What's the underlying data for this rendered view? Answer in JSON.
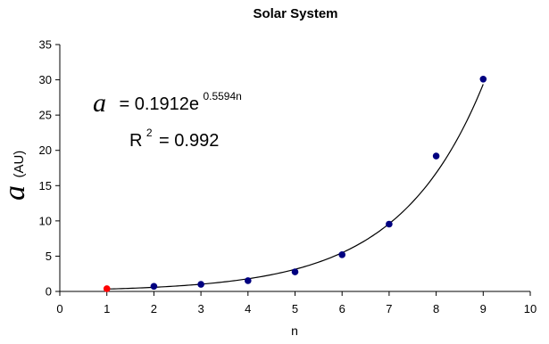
{
  "chart_data": {
    "type": "scatter",
    "title": "Solar System",
    "xlabel": "n",
    "ylabel_symbol": "a",
    "ylabel_unit": "(AU)",
    "xlim": [
      0,
      10
    ],
    "ylim": [
      0,
      35
    ],
    "x_ticks": [
      "0",
      "1",
      "2",
      "3",
      "4",
      "5",
      "6",
      "7",
      "8",
      "9",
      "10"
    ],
    "y_ticks": [
      "0",
      "5",
      "10",
      "15",
      "20",
      "25",
      "30",
      "35"
    ],
    "grid": false,
    "legend": "none",
    "points": [
      {
        "x": 1,
        "y": 0.39,
        "color": "#ff0000"
      },
      {
        "x": 2,
        "y": 0.72,
        "color": "#000080"
      },
      {
        "x": 3,
        "y": 1.0,
        "color": "#000080"
      },
      {
        "x": 4,
        "y": 1.52,
        "color": "#000080"
      },
      {
        "x": 5,
        "y": 2.77,
        "color": "#000080"
      },
      {
        "x": 6,
        "y": 5.2,
        "color": "#000080"
      },
      {
        "x": 7,
        "y": 9.54,
        "color": "#000080"
      },
      {
        "x": 8,
        "y": 19.2,
        "color": "#000080"
      },
      {
        "x": 9,
        "y": 30.1,
        "color": "#000080"
      }
    ],
    "trendline": {
      "type": "exponential",
      "a": 0.1912,
      "b": 0.5594,
      "x_range": [
        1,
        9
      ]
    },
    "equation": {
      "lhs": "a",
      "rhs": "= 0.1912e",
      "exponent": "0.5594n",
      "r2_label": "R",
      "r2_sup": "2",
      "r2_value": "= 0.992"
    }
  }
}
